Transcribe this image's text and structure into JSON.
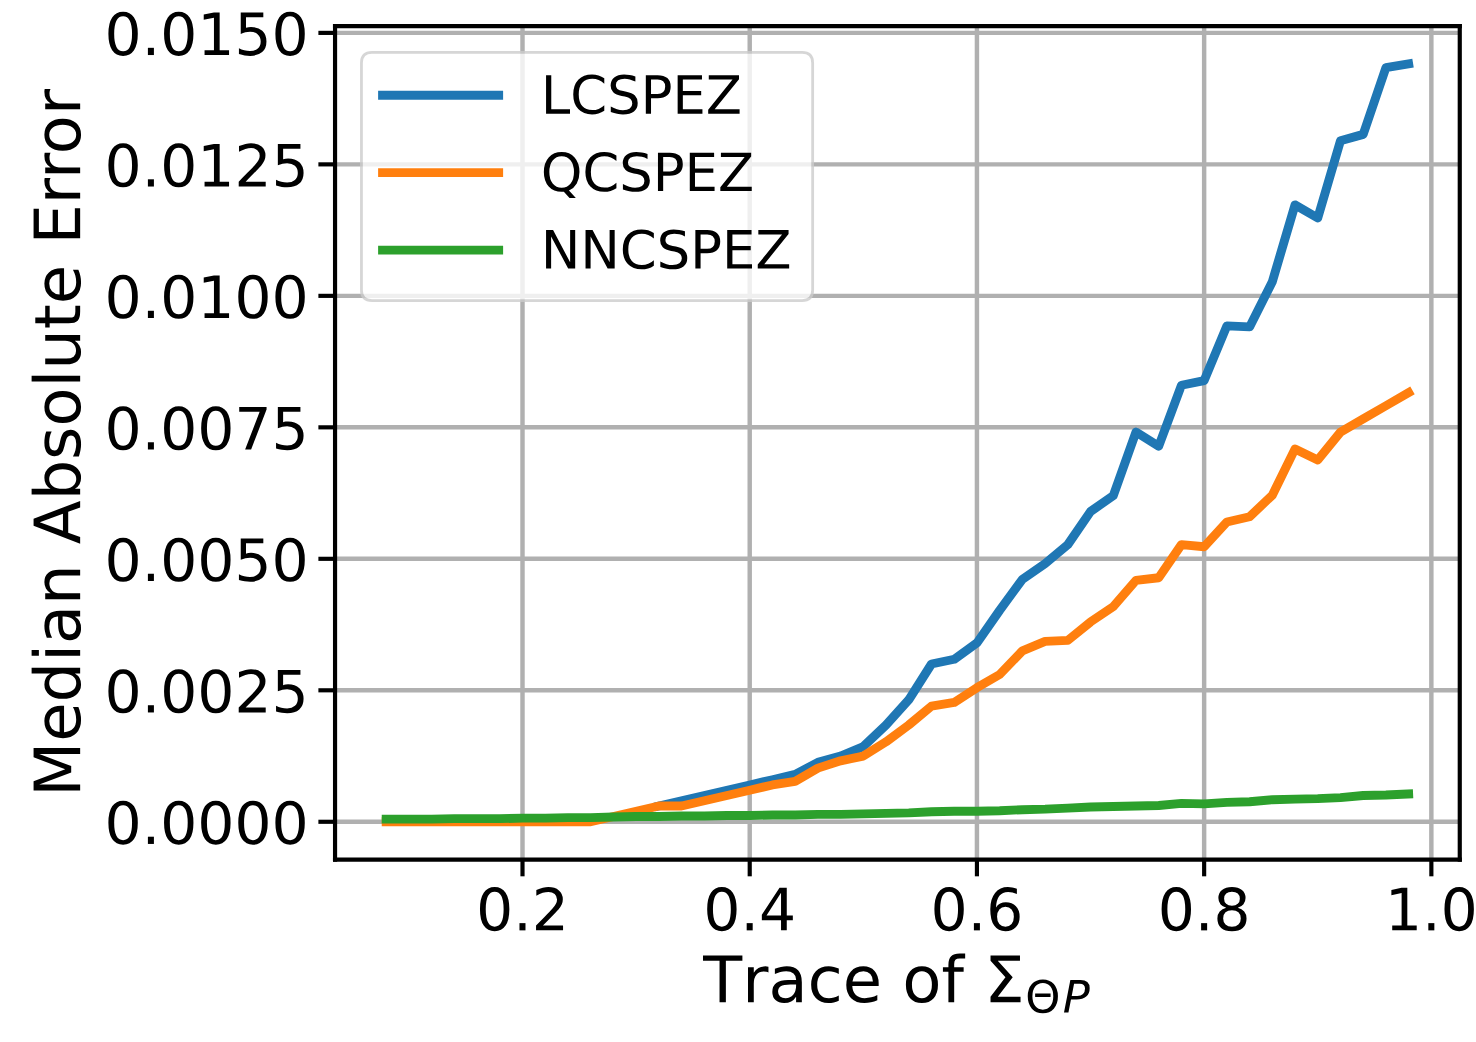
{
  "chart_data": {
    "type": "line",
    "xlabel": "Trace of Σ$_{Θ}$$_{P}$",
    "ylabel": "Median Absolute Error",
    "x": [
      0.08,
      0.1,
      0.12,
      0.14,
      0.16,
      0.18,
      0.2,
      0.22,
      0.24,
      0.26,
      0.28,
      0.3,
      0.32,
      0.34,
      0.36,
      0.38,
      0.4,
      0.42,
      0.44,
      0.46,
      0.48,
      0.5,
      0.52,
      0.54,
      0.56,
      0.58,
      0.6,
      0.62,
      0.64,
      0.66,
      0.68,
      0.7,
      0.72,
      0.74,
      0.76,
      0.78,
      0.8,
      0.82,
      0.84,
      0.86,
      0.88,
      0.9,
      0.92,
      0.94,
      0.96,
      0.98
    ],
    "series": [
      {
        "name": "LCSPEZ",
        "color": "#1f77b4",
        "values": [
          null,
          null,
          null,
          null,
          null,
          null,
          null,
          null,
          null,
          null,
          null,
          null,
          0.0003,
          0.0004,
          0.0005,
          0.0006,
          0.0007,
          0.0008,
          0.0009,
          0.00113,
          0.00125,
          0.00143,
          0.00184,
          0.00232,
          0.003,
          0.00309,
          0.0034,
          0.00402,
          0.00461,
          0.00491,
          0.00527,
          0.0059,
          0.0062,
          0.00741,
          0.00714,
          0.0083,
          0.00839,
          0.00943,
          0.00941,
          0.01027,
          0.01173,
          0.01148,
          0.01295,
          0.01307,
          0.01434,
          0.01441
        ]
      },
      {
        "name": "QCSPEZ",
        "color": "#ff7f0e",
        "values": [
          0.0,
          0.0,
          0.0,
          0.0,
          0.0,
          0.0,
          0.0,
          0.0,
          0.0,
          0.0,
          0.0001,
          0.0002,
          0.0003,
          0.0003,
          0.0004,
          0.0005,
          0.0006,
          0.0007,
          0.00077,
          0.00102,
          0.00116,
          0.00125,
          0.00152,
          0.00184,
          0.0022,
          0.00227,
          0.00255,
          0.0028,
          0.00325,
          0.00343,
          0.00345,
          0.0038,
          0.00409,
          0.00459,
          0.00464,
          0.00527,
          0.00523,
          0.0057,
          0.0058,
          0.00621,
          0.00709,
          0.00688,
          0.00741,
          0.00766,
          0.00791,
          0.00816
        ]
      },
      {
        "name": "NNCSPEZ",
        "color": "#2ca02c",
        "values": [
          5e-05,
          5e-05,
          5e-05,
          6e-05,
          6e-05,
          6e-05,
          7e-05,
          7e-05,
          8e-05,
          8e-05,
          9e-05,
          0.0001,
          0.0001,
          0.00011,
          0.00011,
          0.00012,
          0.00012,
          0.00013,
          0.00013,
          0.00014,
          0.00014,
          0.00015,
          0.00016,
          0.00017,
          0.00019,
          0.0002,
          0.0002,
          0.00021,
          0.00023,
          0.00024,
          0.00026,
          0.00028,
          0.00029,
          0.0003,
          0.00031,
          0.00035,
          0.00034,
          0.00037,
          0.00038,
          0.00042,
          0.00043,
          0.00044,
          0.00046,
          0.0005,
          0.00051,
          0.00053
        ]
      }
    ],
    "xlim": [
      0.035,
      1.025
    ],
    "ylim": [
      -0.00072,
      0.01513
    ],
    "xticks": [
      {
        "value": 0.2,
        "label": "0.2"
      },
      {
        "value": 0.4,
        "label": "0.4"
      },
      {
        "value": 0.6,
        "label": "0.6"
      },
      {
        "value": 0.8,
        "label": "0.8"
      },
      {
        "value": 1.0,
        "label": "1.0"
      }
    ],
    "yticks": [
      {
        "value": 0.0,
        "label": "0.0000"
      },
      {
        "value": 0.0025,
        "label": "0.0025"
      },
      {
        "value": 0.005,
        "label": "0.0050"
      },
      {
        "value": 0.0075,
        "label": "0.0075"
      },
      {
        "value": 0.01,
        "label": "0.0100"
      },
      {
        "value": 0.0125,
        "label": "0.0125"
      },
      {
        "value": 0.015,
        "label": "0.0150"
      }
    ],
    "grid": true,
    "legend": "top left",
    "marker": "none",
    "line_style": "solid"
  }
}
